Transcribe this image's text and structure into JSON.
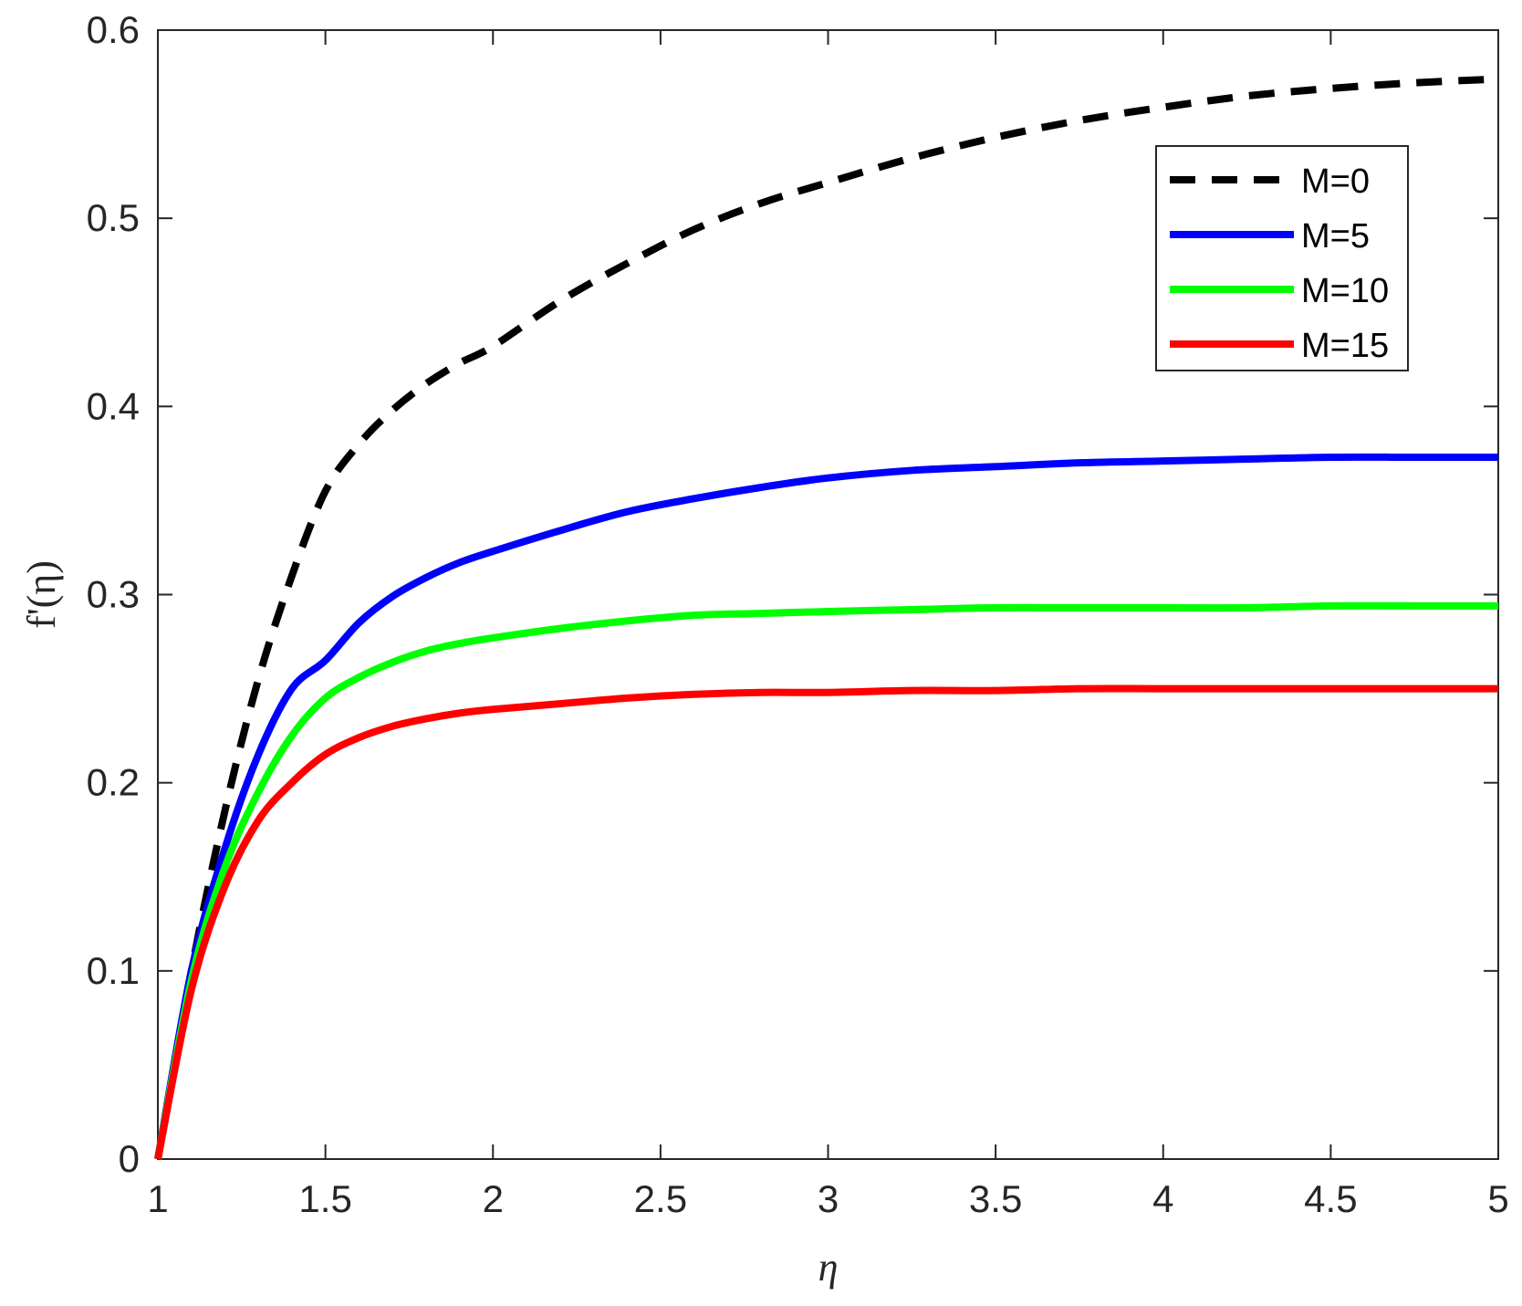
{
  "chart_data": {
    "type": "line",
    "title": "",
    "xlabel": "η",
    "ylabel": "f'(η)",
    "xlim": [
      1,
      5
    ],
    "ylim": [
      0,
      0.6
    ],
    "x_ticks": [
      1,
      1.5,
      2,
      2.5,
      3,
      3.5,
      4,
      4.5,
      5
    ],
    "x_tick_labels": [
      "1",
      "1.5",
      "2",
      "2.5",
      "3",
      "3.5",
      "4",
      "4.5",
      "5"
    ],
    "y_ticks": [
      0,
      0.1,
      0.2,
      0.3,
      0.4,
      0.5,
      0.6
    ],
    "y_tick_labels": [
      "0",
      "0.1",
      "0.2",
      "0.3",
      "0.4",
      "0.5",
      "0.6"
    ],
    "grid": false,
    "legend_position": "top-right",
    "x": [
      1.0,
      1.1,
      1.2,
      1.3,
      1.4,
      1.5,
      1.6,
      1.7,
      1.8,
      1.9,
      2.0,
      2.2,
      2.4,
      2.6,
      2.8,
      3.0,
      3.25,
      3.5,
      3.75,
      4.0,
      4.25,
      4.5,
      4.75,
      5.0
    ],
    "series": [
      {
        "name": "M=0",
        "color": "#000000",
        "dash": "dashed",
        "values": [
          0.0,
          0.1,
          0.185,
          0.255,
          0.31,
          0.355,
          0.38,
          0.398,
          0.412,
          0.423,
          0.432,
          0.456,
          0.476,
          0.494,
          0.508,
          0.519,
          0.532,
          0.543,
          0.552,
          0.559,
          0.565,
          0.569,
          0.572,
          0.574
        ]
      },
      {
        "name": "M=5",
        "color": "#0000ff",
        "dash": "solid",
        "values": [
          0.0,
          0.1,
          0.165,
          0.215,
          0.25,
          0.265,
          0.285,
          0.299,
          0.309,
          0.317,
          0.323,
          0.334,
          0.344,
          0.351,
          0.357,
          0.362,
          0.366,
          0.368,
          0.37,
          0.371,
          0.372,
          0.373,
          0.373,
          0.373
        ]
      },
      {
        "name": "M=10",
        "color": "#00ff00",
        "dash": "solid",
        "values": [
          0.0,
          0.095,
          0.155,
          0.195,
          0.225,
          0.245,
          0.256,
          0.264,
          0.27,
          0.274,
          0.277,
          0.282,
          0.286,
          0.289,
          0.29,
          0.291,
          0.292,
          0.293,
          0.293,
          0.293,
          0.293,
          0.294,
          0.294,
          0.294
        ]
      },
      {
        "name": "M=15",
        "color": "#ff0000",
        "dash": "solid",
        "values": [
          0.0,
          0.09,
          0.145,
          0.18,
          0.2,
          0.215,
          0.224,
          0.23,
          0.234,
          0.237,
          0.239,
          0.242,
          0.245,
          0.247,
          0.248,
          0.248,
          0.249,
          0.249,
          0.25,
          0.25,
          0.25,
          0.25,
          0.25,
          0.25
        ]
      }
    ]
  }
}
